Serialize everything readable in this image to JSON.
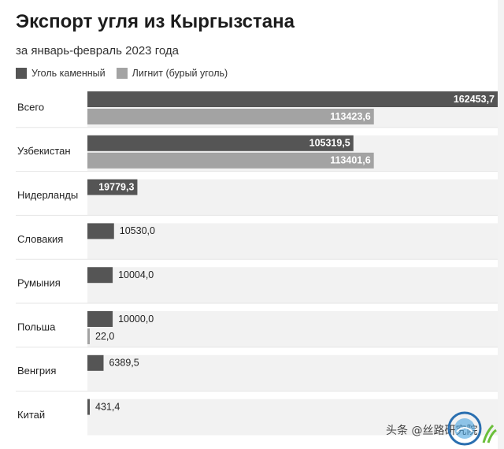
{
  "chart_data": {
    "type": "bar",
    "orientation": "horizontal",
    "title": "Экспорт угля из Кыргызстана",
    "subtitle": "за январь-февраль 2023 года",
    "categories": [
      "Всего",
      "Узбекистан",
      "Нидерланды",
      "Словакия",
      "Румыния",
      "Польша",
      "Венгрия",
      "Китай"
    ],
    "series": [
      {
        "name": "Уголь каменный",
        "color": "#555555",
        "values": [
          162453.7,
          105319.5,
          19779.3,
          10530.0,
          10004.0,
          10000.0,
          6389.5,
          431.4
        ],
        "labels": [
          "162453,7",
          "105319,5",
          "19779,3",
          "10530,0",
          "10004,0",
          "10000,0",
          "6389,5",
          "431,4"
        ]
      },
      {
        "name": "Лигнит (бурый уголь)",
        "color": "#a3a3a3",
        "values": [
          113423.6,
          113401.6,
          null,
          null,
          null,
          22.0,
          null,
          null
        ],
        "labels": [
          "113423,6",
          "113401,6",
          "",
          "",
          "",
          "22,0",
          "",
          ""
        ]
      }
    ],
    "xlim": [
      0,
      162453.7
    ],
    "legend_position": "top-left"
  },
  "watermark": "头条 @丝路研究院"
}
